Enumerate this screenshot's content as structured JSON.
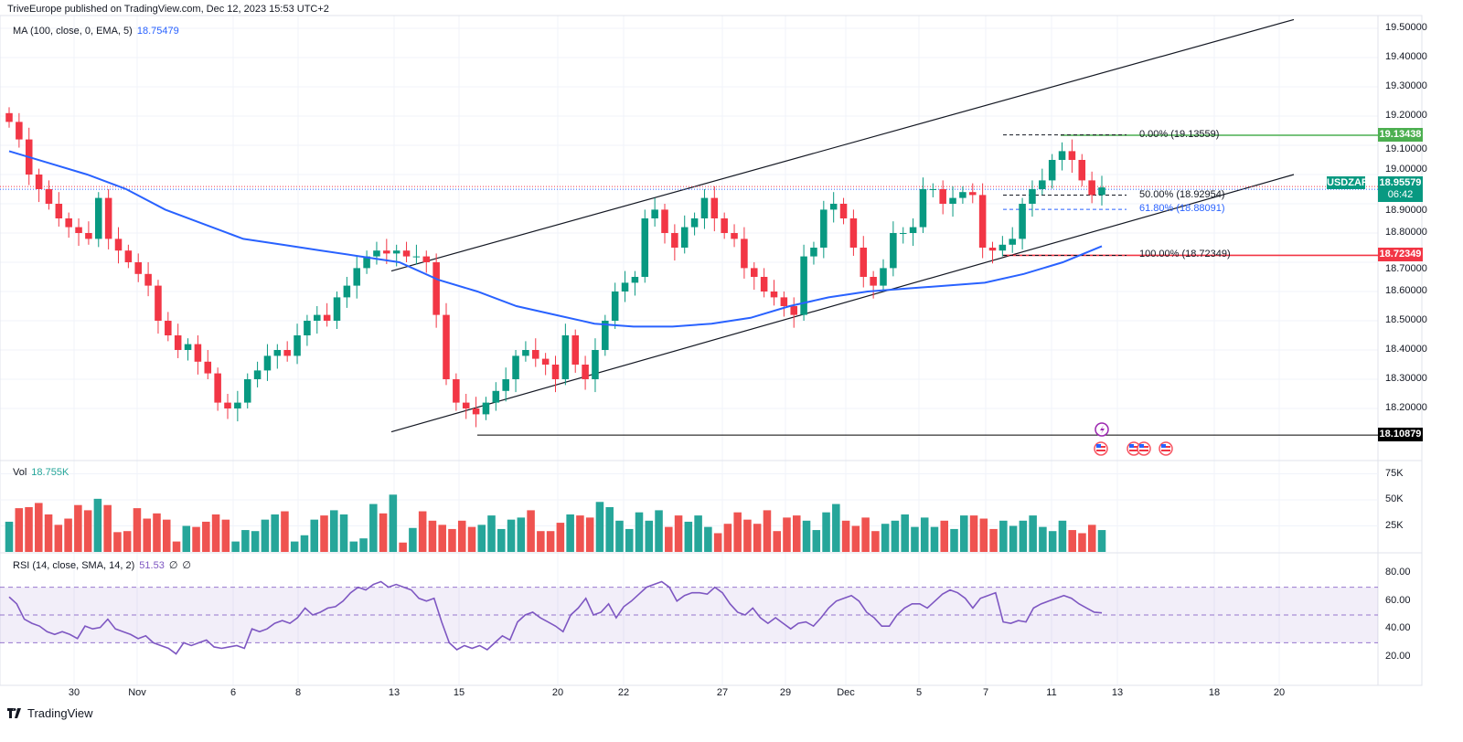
{
  "header": {
    "publisher": "TriveEurope published on TradingView.com, Dec 12, 2023 15:53 UTC+2"
  },
  "legend": {
    "ma_label": "MA (100, close, 0, EMA, 5)",
    "ma_value": "18.75479",
    "vol_label": "Vol",
    "vol_value": "18.755K",
    "rsi_label": "RSI (14, close, SMA, 14, 2)",
    "rsi_value": "51.53",
    "rsi_extra1": "∅",
    "rsi_extra2": "∅"
  },
  "colors": {
    "up": "#089981",
    "down": "#f23645",
    "ma": "#2962ff",
    "rsi": "#7e57c2",
    "fib_high": "#4caf50",
    "fib_low": "#f23645"
  },
  "chart_data": {
    "type": "candlestick",
    "symbol": "USDZAR",
    "last_price": "18.95579",
    "countdown": "06:42",
    "price_axis": {
      "ticks": [
        "19.50000",
        "19.40000",
        "19.30000",
        "19.20000",
        "19.10000",
        "19.00000",
        "18.90000",
        "18.80000",
        "18.70000",
        "18.60000",
        "18.50000",
        "18.40000",
        "18.30000",
        "18.20000"
      ],
      "range": [
        18.05,
        19.55
      ]
    },
    "closes": [
      19.18,
      19.12,
      19.0,
      18.95,
      18.9,
      18.85,
      18.82,
      18.8,
      18.78,
      18.92,
      18.78,
      18.74,
      18.7,
      18.66,
      18.62,
      18.5,
      18.45,
      18.4,
      18.42,
      18.36,
      18.32,
      18.22,
      18.2,
      18.22,
      18.3,
      18.33,
      18.38,
      18.4,
      18.38,
      18.45,
      18.5,
      18.52,
      18.5,
      18.58,
      18.62,
      18.68,
      18.72,
      18.74,
      18.73,
      18.74,
      18.72,
      18.72,
      18.7,
      18.52,
      18.3,
      18.22,
      18.2,
      18.18,
      18.22,
      18.26,
      18.3,
      18.38,
      18.4,
      18.37,
      18.35,
      18.3,
      18.45,
      18.35,
      18.3,
      18.4,
      18.5,
      18.6,
      18.63,
      18.65,
      18.85,
      18.88,
      18.8,
      18.75,
      18.82,
      18.85,
      18.92,
      18.85,
      18.8,
      18.78,
      18.68,
      18.65,
      18.6,
      18.58,
      18.55,
      18.52,
      18.72,
      18.75,
      18.88,
      18.9,
      18.85,
      18.75,
      18.65,
      18.62,
      18.68,
      18.8,
      18.8,
      18.82,
      18.95,
      18.95,
      18.9,
      18.92,
      18.94,
      18.93,
      18.75,
      18.74,
      18.76,
      18.78,
      18.9,
      18.95,
      18.98,
      19.05,
      19.08,
      19.05,
      18.98,
      18.93,
      18.95579
    ],
    "ma_100_ema": [
      19.08,
      19.04,
      19.0,
      18.95,
      18.88,
      18.83,
      18.78,
      18.76,
      18.74,
      18.72,
      18.7,
      18.64,
      18.6,
      18.55,
      18.52,
      18.49,
      18.48,
      18.48,
      18.49,
      18.51,
      18.55,
      18.58,
      18.6,
      18.61,
      18.62,
      18.63,
      18.66,
      18.7,
      18.755
    ],
    "volume": {
      "ticks": [
        "75K",
        "50K",
        "25K"
      ],
      "max": 80,
      "values_k": [
        29,
        42,
        43,
        47,
        36,
        26,
        32,
        45,
        40,
        51,
        45,
        19,
        20,
        42,
        32,
        37,
        31,
        10,
        25,
        24,
        29,
        36,
        31,
        10,
        21,
        20,
        31,
        36,
        39,
        10,
        16,
        31,
        35,
        40,
        36,
        10,
        13,
        46,
        37,
        55,
        9,
        23,
        39,
        30,
        26,
        22,
        30,
        24,
        26,
        35,
        22,
        31,
        33,
        40,
        20,
        20,
        28,
        36,
        35,
        33,
        48,
        43,
        30,
        22,
        38,
        30,
        40,
        24,
        35,
        29,
        35,
        24,
        18,
        27,
        38,
        31,
        27,
        40,
        20,
        33,
        35,
        30,
        21,
        38,
        46,
        30,
        25,
        33,
        20,
        27,
        30,
        36,
        24,
        33,
        24,
        30,
        22,
        35,
        35,
        32,
        22,
        30,
        25,
        30,
        35,
        24,
        20,
        30,
        21,
        18,
        26,
        21
      ]
    },
    "rsi": {
      "ticks": [
        "80.00",
        "60.00",
        "40.00",
        "20.00"
      ],
      "upper_band": 70,
      "middle_band": 50,
      "lower_band": 30,
      "range": [
        14,
        86
      ],
      "values": [
        63,
        58,
        47,
        44,
        42,
        38,
        36,
        38,
        36,
        33,
        42,
        40,
        41,
        47,
        40,
        38,
        36,
        33,
        35,
        30,
        28,
        26,
        22,
        30,
        28,
        30,
        32,
        27,
        26,
        27,
        28,
        26,
        40,
        38,
        40,
        44,
        46,
        44,
        48,
        55,
        50,
        52,
        55,
        56,
        60,
        66,
        70,
        68,
        72,
        74,
        70,
        72,
        70,
        68,
        62,
        60,
        62,
        45,
        30,
        25,
        28,
        26,
        28,
        25,
        30,
        35,
        32,
        45,
        50,
        52,
        48,
        45,
        42,
        38,
        50,
        55,
        62,
        50,
        52,
        58,
        48,
        56,
        60,
        65,
        70,
        72,
        74,
        70,
        60,
        64,
        66,
        66,
        65,
        70,
        66,
        58,
        52,
        50,
        55,
        48,
        44,
        48,
        44,
        40,
        44,
        45,
        42,
        48,
        55,
        60,
        62,
        64,
        60,
        52,
        48,
        42,
        42,
        50,
        55,
        58,
        58,
        55,
        60,
        65,
        68,
        66,
        62,
        55,
        62,
        64,
        66,
        45,
        44,
        46,
        45,
        55,
        58,
        60,
        62,
        64,
        62,
        58,
        55,
        52,
        51.53
      ]
    },
    "x_ticks": [
      "30",
      "Nov",
      "6",
      "8",
      "13",
      "15",
      "20",
      "22",
      "27",
      "29",
      "Dec",
      "5",
      "7",
      "11",
      "13",
      "18",
      "20"
    ],
    "fibonacci": [
      {
        "label": "0.00% (19.13559)",
        "price": 19.13559,
        "color": "#131722"
      },
      {
        "label": "50.00% (18.92954)",
        "price": 18.92954,
        "color": "#131722"
      },
      {
        "label": "61.80% (18.88091)",
        "price": 18.88091,
        "color": "#2962ff"
      },
      {
        "label": "100.00% (18.72349)",
        "price": 18.72349,
        "color": "#131722"
      }
    ],
    "levels": [
      {
        "label": "19.13438",
        "price": 19.13438,
        "color": "#4caf50"
      },
      {
        "label": "18.72349",
        "price": 18.72349,
        "color": "#f23645"
      },
      {
        "label": "18.10879",
        "price": 18.10879,
        "color": "#000000"
      }
    ],
    "channel": {
      "upper": [
        18.67,
        19.53
      ],
      "lower": [
        18.12,
        19.0
      ]
    }
  },
  "footer": {
    "brand": "TradingView"
  }
}
